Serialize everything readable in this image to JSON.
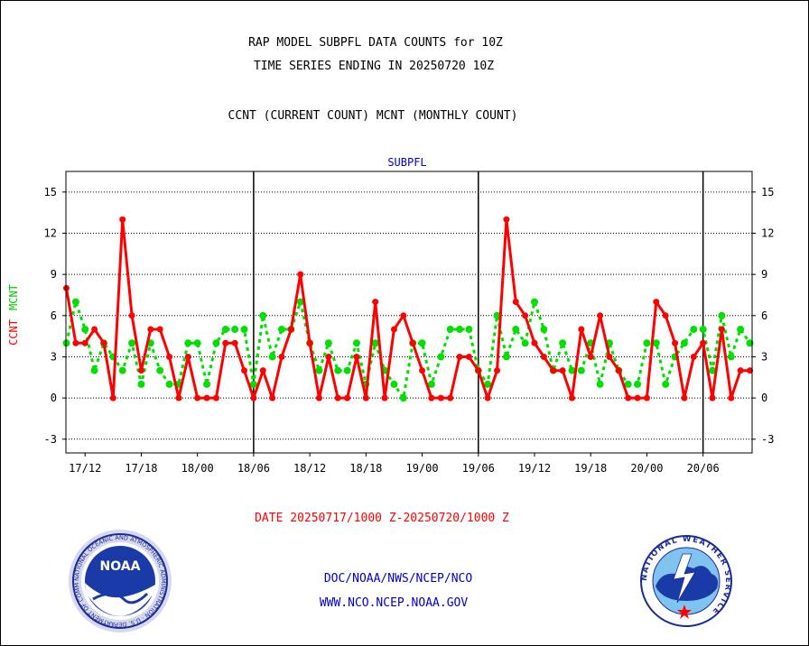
{
  "header": {
    "title_line1": "RAP MODEL SUBPFL DATA COUNTS for 10Z",
    "title_line2": "TIME SERIES ENDING IN 20250720 10Z",
    "subtitle": "CCNT (CURRENT COUNT) MCNT (MONTHLY COUNT)"
  },
  "footer": {
    "date_range": "DATE 20250717/1000 Z-20250720/1000 Z",
    "org_line": "DOC/NOAA/NWS/NCEP/NCO",
    "url_line": "WWW.NCO.NCEP.NOAA.GOV",
    "noaa_logo_text": "NOAA",
    "noaa_ring_text": "NATIONAL OCEANIC AND ATMOSPHERIC ADMINISTRATION · U.S. DEPARTMENT OF COMMERCE",
    "nws_ring_text": "NATIONAL WEATHER SERVICE"
  },
  "colors": {
    "ccnt": "#ff0000",
    "mcnt": "#00e000",
    "plot_title": "#0000cc",
    "footer_text": "#0000cc",
    "date_text": "#ff0000"
  },
  "chart_data": {
    "type": "line",
    "plot_title": "SUBPFL",
    "ylabel_left": [
      "CCNT",
      "MCNT"
    ],
    "ylim": [
      -4,
      16.5
    ],
    "yticks": [
      -3,
      0,
      3,
      6,
      9,
      12,
      15
    ],
    "grid": true,
    "x_start": "2025-07-17 10Z",
    "x_end": "2025-07-20 10Z",
    "x_step": "1 hour",
    "xtick_labels": [
      "17/12",
      "17/18",
      "18/00",
      "18/06",
      "18/12",
      "18/18",
      "19/00",
      "19/06",
      "19/12",
      "19/18",
      "20/00",
      "20/06"
    ],
    "day_boundaries": [
      "18/06",
      "19/06",
      "20/06"
    ],
    "series": [
      {
        "name": "CCNT",
        "values": [
          8,
          4,
          4,
          5,
          4,
          0,
          13,
          6,
          2,
          5,
          5,
          3,
          0,
          3,
          0,
          0,
          0,
          4,
          4,
          2,
          0,
          2,
          0,
          3,
          5,
          9,
          4,
          0,
          3,
          0,
          0,
          3,
          0,
          7,
          0,
          5,
          6,
          4,
          2,
          0,
          0,
          0,
          3,
          3,
          2,
          0,
          2,
          13,
          7,
          6,
          4,
          3,
          2,
          2,
          0,
          5,
          3,
          6,
          3,
          2,
          0,
          0,
          0,
          7,
          6,
          4,
          0,
          3,
          4,
          0,
          5,
          0,
          2,
          2
        ]
      },
      {
        "name": "MCNT",
        "values": [
          4,
          7,
          5,
          2,
          4,
          3,
          2,
          4,
          1,
          4,
          2,
          1,
          1,
          4,
          4,
          1,
          4,
          5,
          5,
          5,
          1,
          6,
          3,
          5,
          5,
          7,
          4,
          2,
          4,
          2,
          2,
          4,
          1,
          4,
          2,
          1,
          0,
          4,
          4,
          1,
          3,
          5,
          5,
          5,
          2,
          1,
          6,
          3,
          5,
          4,
          7,
          5,
          2,
          4,
          2,
          2,
          4,
          1,
          4,
          2,
          1,
          1,
          4,
          4,
          1,
          3,
          4,
          5,
          5,
          2,
          6,
          3,
          5,
          4
        ]
      }
    ]
  }
}
